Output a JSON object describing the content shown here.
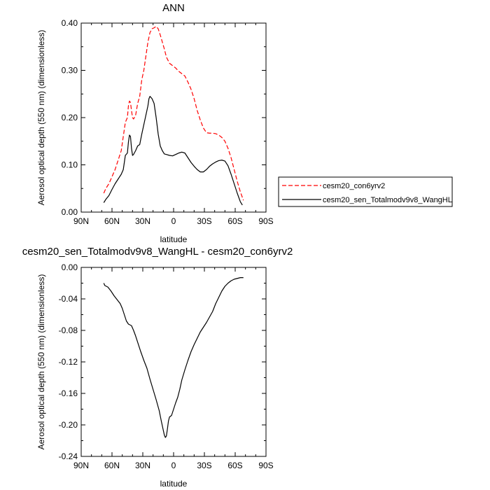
{
  "chart_data": [
    {
      "type": "line",
      "title": "ANN",
      "xlabel": "latitude",
      "ylabel": "Aerosol optical depth (550 nm) (dimensionless)",
      "xlim": [
        -90,
        90
      ],
      "ylim": [
        0,
        0.4
      ],
      "x_ticks": [
        {
          "value": -90,
          "label": "90N"
        },
        {
          "value": -60,
          "label": "60N"
        },
        {
          "value": -30,
          "label": "30N"
        },
        {
          "value": 0,
          "label": "0"
        },
        {
          "value": 30,
          "label": "30S"
        },
        {
          "value": 60,
          "label": "60S"
        },
        {
          "value": 90,
          "label": "90S"
        }
      ],
      "y_ticks": [
        {
          "value": 0,
          "label": "0.00"
        },
        {
          "value": 0.1,
          "label": "0.10"
        },
        {
          "value": 0.2,
          "label": "0.20"
        },
        {
          "value": 0.3,
          "label": "0.30"
        },
        {
          "value": 0.4,
          "label": "0.40"
        }
      ],
      "legend": "right",
      "series": [
        {
          "name": "cesm20_con6yrv2",
          "color": "#ff0000",
          "dash": "dashed",
          "points": [
            [
              -68,
              0.04
            ],
            [
              -66,
              0.05
            ],
            [
              -63,
              0.06
            ],
            [
              -60,
              0.075
            ],
            [
              -57,
              0.09
            ],
            [
              -54,
              0.11
            ],
            [
              -51,
              0.13
            ],
            [
              -49,
              0.16
            ],
            [
              -47,
              0.19
            ],
            [
              -45,
              0.2
            ],
            [
              -44,
              0.225
            ],
            [
              -43,
              0.235
            ],
            [
              -42,
              0.232
            ],
            [
              -41,
              0.215
            ],
            [
              -40,
              0.2
            ],
            [
              -39,
              0.197
            ],
            [
              -37,
              0.205
            ],
            [
              -35,
              0.23
            ],
            [
              -33,
              0.245
            ],
            [
              -31,
              0.28
            ],
            [
              -29,
              0.3
            ],
            [
              -27,
              0.33
            ],
            [
              -25,
              0.36
            ],
            [
              -23,
              0.38
            ],
            [
              -21,
              0.388
            ],
            [
              -19,
              0.39
            ],
            [
              -17,
              0.393
            ],
            [
              -15,
              0.388
            ],
            [
              -13,
              0.375
            ],
            [
              -11,
              0.36
            ],
            [
              -9,
              0.345
            ],
            [
              -7,
              0.328
            ],
            [
              -4,
              0.315
            ],
            [
              -1,
              0.31
            ],
            [
              2,
              0.305
            ],
            [
              5,
              0.298
            ],
            [
              8,
              0.293
            ],
            [
              11,
              0.288
            ],
            [
              14,
              0.275
            ],
            [
              17,
              0.26
            ],
            [
              20,
              0.24
            ],
            [
              23,
              0.215
            ],
            [
              26,
              0.195
            ],
            [
              29,
              0.178
            ],
            [
              32,
              0.168
            ],
            [
              35,
              0.167
            ],
            [
              38,
              0.167
            ],
            [
              41,
              0.166
            ],
            [
              44,
              0.163
            ],
            [
              47,
              0.158
            ],
            [
              50,
              0.15
            ],
            [
              53,
              0.135
            ],
            [
              56,
              0.115
            ],
            [
              59,
              0.09
            ],
            [
              62,
              0.065
            ],
            [
              65,
              0.043
            ],
            [
              68,
              0.025
            ]
          ]
        },
        {
          "name": "cesm20_sen_Totalmodv9v8_WangHL",
          "color": "#000000",
          "dash": "solid",
          "points": [
            [
              -68,
              0.02
            ],
            [
              -66,
              0.027
            ],
            [
              -63,
              0.035
            ],
            [
              -60,
              0.048
            ],
            [
              -57,
              0.06
            ],
            [
              -54,
              0.07
            ],
            [
              -51,
              0.08
            ],
            [
              -49,
              0.09
            ],
            [
              -47,
              0.12
            ],
            [
              -45,
              0.125
            ],
            [
              -44,
              0.148
            ],
            [
              -43,
              0.163
            ],
            [
              -42,
              0.16
            ],
            [
              -41,
              0.135
            ],
            [
              -40,
              0.12
            ],
            [
              -39,
              0.122
            ],
            [
              -37,
              0.13
            ],
            [
              -35,
              0.14
            ],
            [
              -33,
              0.143
            ],
            [
              -31,
              0.165
            ],
            [
              -29,
              0.185
            ],
            [
              -27,
              0.205
            ],
            [
              -25,
              0.225
            ],
            [
              -24,
              0.24
            ],
            [
              -23,
              0.245
            ],
            [
              -21,
              0.24
            ],
            [
              -19,
              0.23
            ],
            [
              -17,
              0.2
            ],
            [
              -15,
              0.165
            ],
            [
              -13,
              0.14
            ],
            [
              -11,
              0.13
            ],
            [
              -9,
              0.123
            ],
            [
              -7,
              0.122
            ],
            [
              -4,
              0.12
            ],
            [
              -1,
              0.119
            ],
            [
              2,
              0.122
            ],
            [
              5,
              0.125
            ],
            [
              8,
              0.127
            ],
            [
              11,
              0.125
            ],
            [
              14,
              0.115
            ],
            [
              17,
              0.105
            ],
            [
              20,
              0.097
            ],
            [
              23,
              0.09
            ],
            [
              26,
              0.085
            ],
            [
              29,
              0.085
            ],
            [
              32,
              0.09
            ],
            [
              35,
              0.097
            ],
            [
              38,
              0.102
            ],
            [
              41,
              0.106
            ],
            [
              44,
              0.109
            ],
            [
              47,
              0.11
            ],
            [
              50,
              0.108
            ],
            [
              53,
              0.098
            ],
            [
              56,
              0.08
            ],
            [
              59,
              0.06
            ],
            [
              62,
              0.04
            ],
            [
              65,
              0.022
            ],
            [
              67,
              0.015
            ]
          ]
        }
      ]
    },
    {
      "type": "line",
      "title": "cesm20_sen_Totalmodv9v8_WangHL - cesm20_con6yrv2",
      "xlabel": "latitude",
      "ylabel": "Aerosol optical depth (550 nm) (dimensionless)",
      "xlim": [
        -90,
        90
      ],
      "ylim": [
        -0.24,
        0
      ],
      "x_ticks": [
        {
          "value": -90,
          "label": "90N"
        },
        {
          "value": -60,
          "label": "60N"
        },
        {
          "value": -30,
          "label": "30N"
        },
        {
          "value": 0,
          "label": "0"
        },
        {
          "value": 30,
          "label": "30S"
        },
        {
          "value": 60,
          "label": "60S"
        },
        {
          "value": 90,
          "label": "90S"
        }
      ],
      "y_ticks": [
        {
          "value": 0,
          "label": "0.00"
        },
        {
          "value": -0.04,
          "label": "-0.04"
        },
        {
          "value": -0.08,
          "label": "-0.08"
        },
        {
          "value": -0.12,
          "label": "-0.12"
        },
        {
          "value": -0.16,
          "label": "-0.16"
        },
        {
          "value": -0.2,
          "label": "-0.20"
        },
        {
          "value": -0.24,
          "label": "-0.24"
        }
      ],
      "series": [
        {
          "color": "#000000",
          "dash": "solid",
          "points": [
            [
              -68,
              -0.02
            ],
            [
              -67,
              -0.023
            ],
            [
              -64,
              -0.025
            ],
            [
              -61,
              -0.03
            ],
            [
              -58,
              -0.036
            ],
            [
              -55,
              -0.041
            ],
            [
              -52,
              -0.046
            ],
            [
              -50,
              -0.052
            ],
            [
              -48,
              -0.06
            ],
            [
              -46,
              -0.068
            ],
            [
              -44,
              -0.072
            ],
            [
              -41,
              -0.074
            ],
            [
              -39,
              -0.08
            ],
            [
              -37,
              -0.087
            ],
            [
              -35,
              -0.095
            ],
            [
              -32,
              -0.107
            ],
            [
              -29,
              -0.118
            ],
            [
              -26,
              -0.128
            ],
            [
              -23,
              -0.142
            ],
            [
              -20,
              -0.155
            ],
            [
              -17,
              -0.168
            ],
            [
              -14,
              -0.182
            ],
            [
              -12,
              -0.195
            ],
            [
              -10,
              -0.207
            ],
            [
              -9,
              -0.213
            ],
            [
              -8,
              -0.216
            ],
            [
              -7,
              -0.214
            ],
            [
              -6,
              -0.205
            ],
            [
              -5,
              -0.195
            ],
            [
              -4,
              -0.19
            ],
            [
              -2,
              -0.188
            ],
            [
              0,
              -0.18
            ],
            [
              2,
              -0.172
            ],
            [
              4,
              -0.165
            ],
            [
              6,
              -0.155
            ],
            [
              8,
              -0.143
            ],
            [
              11,
              -0.13
            ],
            [
              14,
              -0.118
            ],
            [
              17,
              -0.107
            ],
            [
              20,
              -0.098
            ],
            [
              23,
              -0.09
            ],
            [
              26,
              -0.082
            ],
            [
              29,
              -0.076
            ],
            [
              32,
              -0.07
            ],
            [
              35,
              -0.063
            ],
            [
              38,
              -0.056
            ],
            [
              41,
              -0.046
            ],
            [
              44,
              -0.038
            ],
            [
              47,
              -0.03
            ],
            [
              50,
              -0.024
            ],
            [
              53,
              -0.02
            ],
            [
              56,
              -0.017
            ],
            [
              59,
              -0.015
            ],
            [
              62,
              -0.014
            ],
            [
              65,
              -0.013
            ],
            [
              68,
              -0.013
            ]
          ]
        }
      ]
    }
  ]
}
